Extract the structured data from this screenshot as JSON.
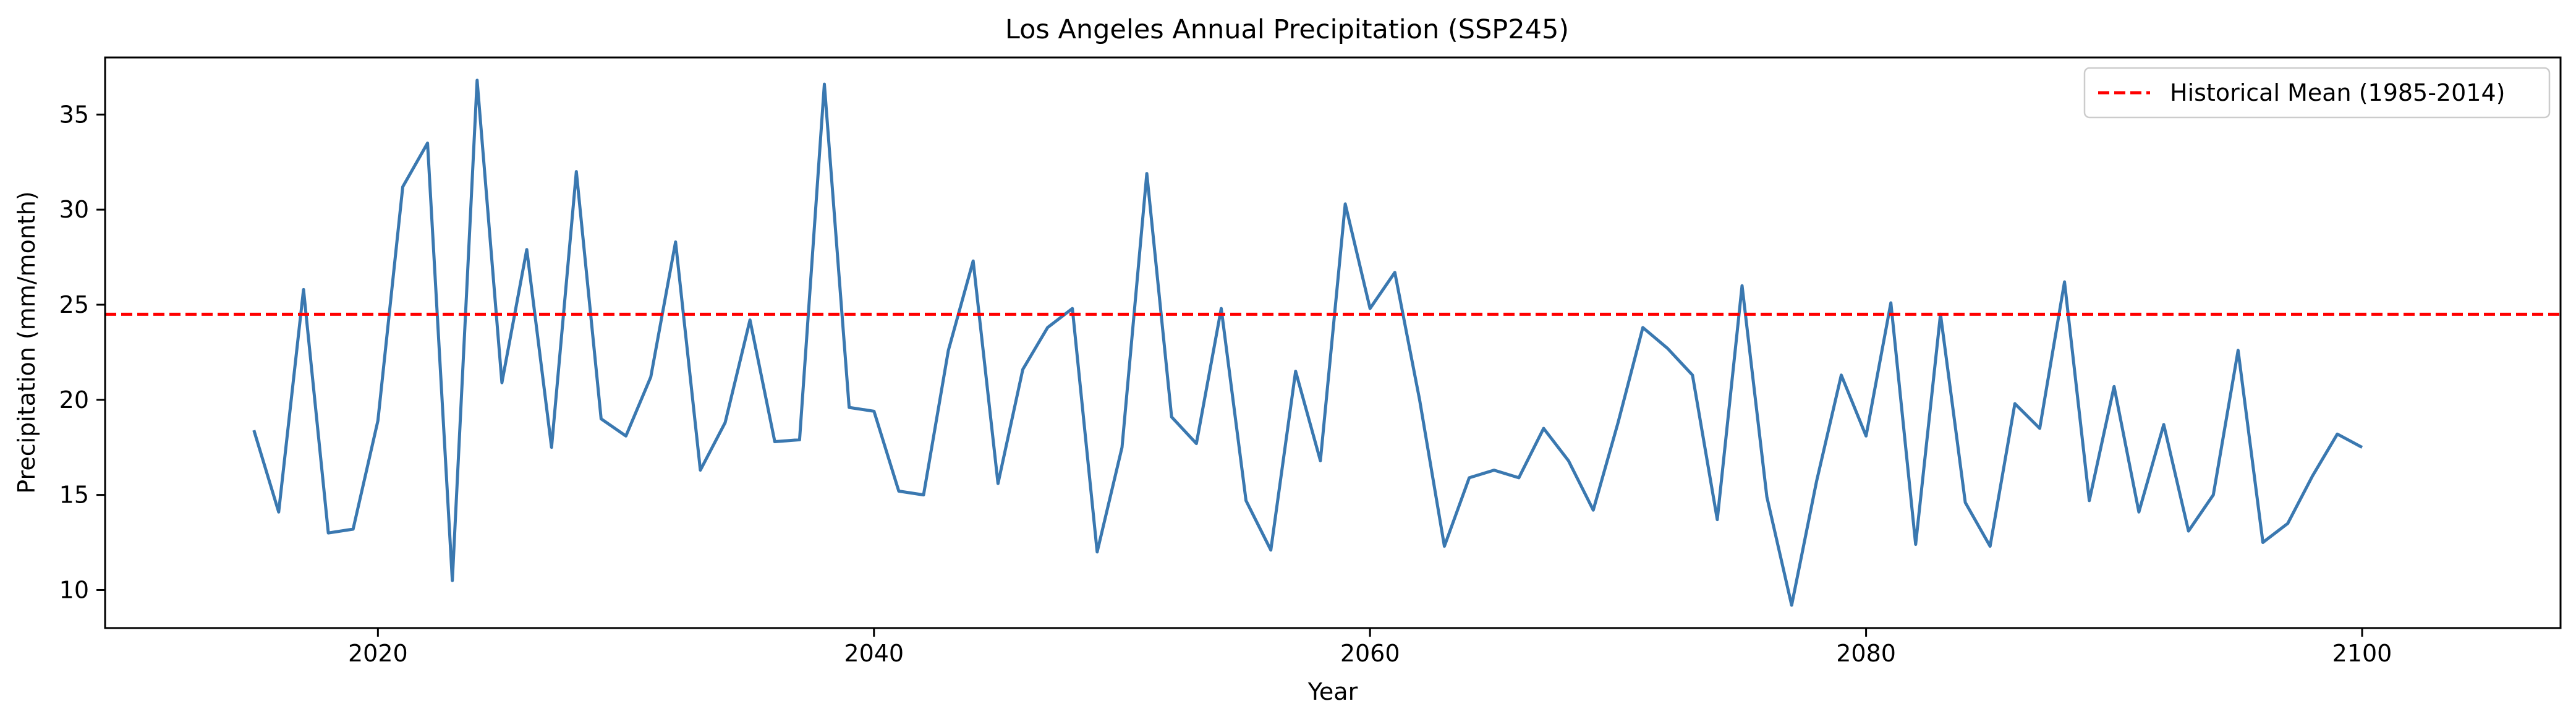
{
  "chart_data": {
    "type": "line",
    "title": "Los Angeles Annual Precipitation (SSP245)",
    "xlabel": "Year",
    "ylabel": "Precipitation (mm/month)",
    "xlim": [
      2009,
      2108
    ],
    "ylim": [
      8,
      38
    ],
    "xticks": [
      2020,
      2040,
      2060,
      2080,
      2100
    ],
    "yticks": [
      10,
      15,
      20,
      25,
      30,
      35
    ],
    "grid": false,
    "legend_position": "top-right",
    "reference_line": {
      "name": "Historical Mean (1985-2014)",
      "value": 24.5,
      "color": "#ff0000",
      "style": "dashed"
    },
    "series": [
      {
        "color": "#3a78b0",
        "x": [
          2015,
          2016,
          2017,
          2018,
          2019,
          2020,
          2021,
          2022,
          2023,
          2024,
          2025,
          2026,
          2027,
          2028,
          2029,
          2030,
          2031,
          2032,
          2033,
          2034,
          2035,
          2036,
          2037,
          2038,
          2039,
          2040,
          2041,
          2042,
          2043,
          2044,
          2045,
          2046,
          2047,
          2048,
          2049,
          2050,
          2051,
          2052,
          2053,
          2054,
          2055,
          2056,
          2057,
          2058,
          2059,
          2060,
          2061,
          2062,
          2063,
          2064,
          2065,
          2066,
          2067,
          2068,
          2069,
          2070,
          2071,
          2072,
          2073,
          2074,
          2075,
          2076,
          2077,
          2078,
          2079,
          2080,
          2081,
          2082,
          2083,
          2084,
          2085,
          2086,
          2087,
          2088,
          2089,
          2090,
          2091,
          2092,
          2093,
          2094,
          2095,
          2096,
          2097,
          2098,
          2099,
          2100
        ],
        "values": [
          18.4,
          14.1,
          25.8,
          13.0,
          13.2,
          18.9,
          31.2,
          33.5,
          10.5,
          36.8,
          20.9,
          27.9,
          17.5,
          32.0,
          19.0,
          18.1,
          21.2,
          28.3,
          16.3,
          18.8,
          24.2,
          17.8,
          17.9,
          36.6,
          19.6,
          19.4,
          15.2,
          15.0,
          22.6,
          27.3,
          15.6,
          21.6,
          23.8,
          24.8,
          12.0,
          17.5,
          31.9,
          19.1,
          17.7,
          24.8,
          14.7,
          12.1,
          21.5,
          16.8,
          30.3,
          24.8,
          26.7,
          20.0,
          12.3,
          15.9,
          16.3,
          15.9,
          18.5,
          16.8,
          14.2,
          18.8,
          23.8,
          22.7,
          21.3,
          13.7,
          26.0,
          14.9,
          9.2,
          15.7,
          21.3,
          18.1,
          25.1,
          12.4,
          24.5,
          14.6,
          12.3,
          19.8,
          18.5,
          26.2,
          14.7,
          20.7,
          14.1,
          18.7,
          13.1,
          15.0,
          22.6,
          12.5,
          13.5,
          16.0,
          18.2,
          17.5
        ]
      }
    ]
  }
}
